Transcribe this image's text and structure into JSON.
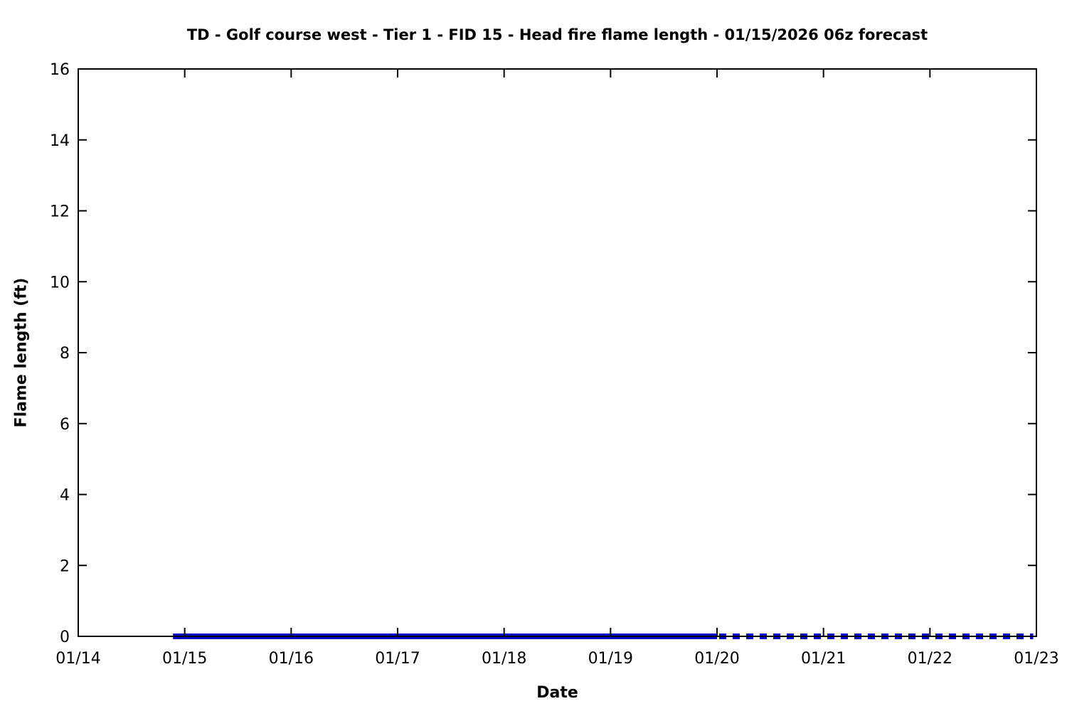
{
  "chart_data": {
    "type": "line",
    "title": "TD - Golf course west - Tier 1 - FID 15 - Head fire flame length - 01/15/2026 06z forecast",
    "xlabel": "Date",
    "ylabel": "Flame length (ft)",
    "x_tick_labels": [
      "01/14",
      "01/15",
      "01/16",
      "01/17",
      "01/18",
      "01/19",
      "01/20",
      "01/21",
      "01/22",
      "01/23"
    ],
    "x_range_days": [
      0,
      9
    ],
    "ylim": [
      0,
      16
    ],
    "yticks": [
      0,
      2,
      4,
      6,
      8,
      10,
      12,
      14,
      16
    ],
    "grid": false,
    "legend": "none",
    "background_color": "#ffffff",
    "axis_color": "#000000",
    "line_color": "#0000CD",
    "series": [
      {
        "name": "flame-length-solid-segment",
        "style": "solid",
        "color": "#0000CD",
        "linewidth": 8,
        "points": [
          [
            0.89,
            0
          ],
          [
            6.0,
            0
          ]
        ]
      },
      {
        "name": "flame-length-dashed-segment",
        "style": "dashed",
        "color": "#0000CD",
        "linewidth": 8,
        "dash": [
          10,
          9
        ],
        "points": [
          [
            6.02,
            0
          ],
          [
            8.97,
            0
          ]
        ]
      }
    ]
  }
}
